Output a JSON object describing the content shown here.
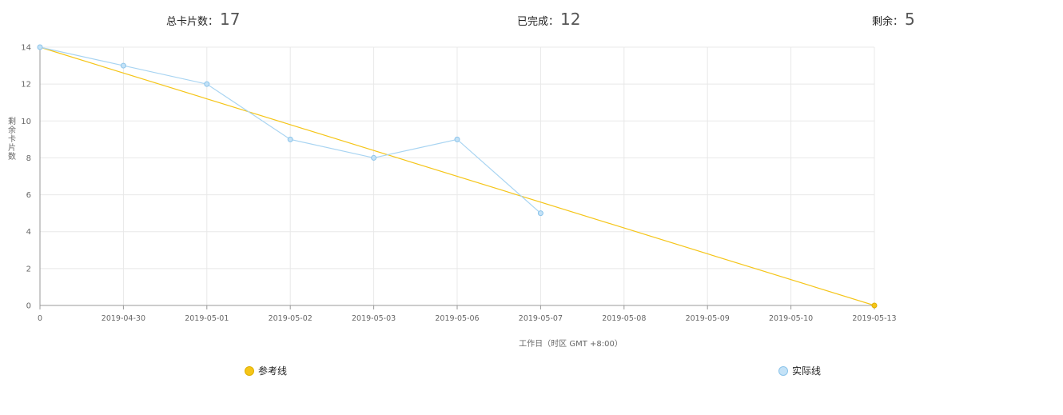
{
  "summary": {
    "total_label": "总卡片数：",
    "total_value": "17",
    "done_label": "已完成：",
    "done_value": "12",
    "remaining_label": "剩余：",
    "remaining_value": "5"
  },
  "colors": {
    "reference": "#f5c518",
    "actual": "#a8d4f2",
    "grid": "#e8e8e8",
    "axis": "#999999",
    "text": "#666666"
  },
  "chart_data": {
    "type": "line",
    "categories": [
      "0",
      "2019-04-30",
      "2019-05-01",
      "2019-05-02",
      "2019-05-03",
      "2019-05-06",
      "2019-05-07",
      "2019-05-08",
      "2019-05-09",
      "2019-05-10",
      "2019-05-13"
    ],
    "xlabel": "工作日（时区 GMT +8:00）",
    "ylabel": "剩余卡片数",
    "ylim": [
      0,
      14
    ],
    "yticks": [
      0,
      2,
      4,
      6,
      8,
      10,
      12,
      14
    ],
    "grid": true,
    "legend_position": "bottom",
    "series": [
      {
        "name": "参考线",
        "values": [
          14,
          null,
          null,
          null,
          null,
          null,
          null,
          null,
          null,
          null,
          0
        ]
      },
      {
        "name": "实际线",
        "values": [
          14,
          13,
          12,
          9,
          8,
          9,
          5,
          null,
          null,
          null,
          null
        ]
      }
    ]
  }
}
